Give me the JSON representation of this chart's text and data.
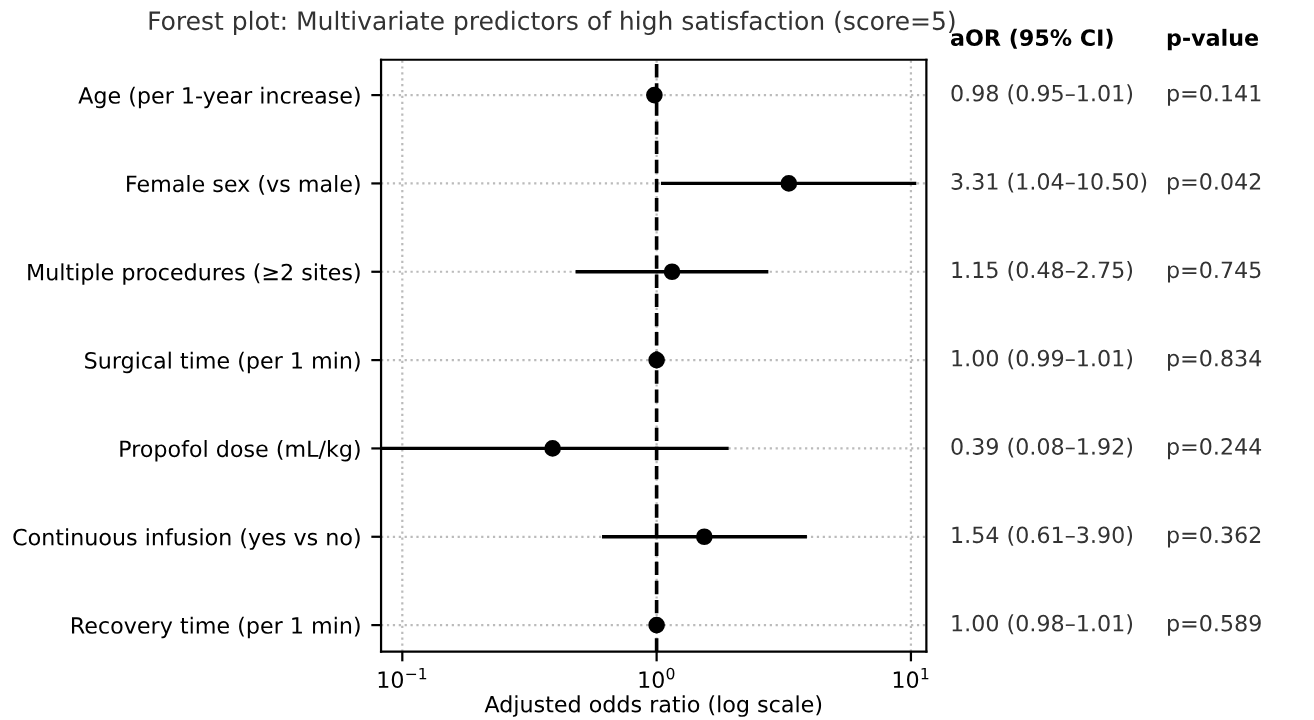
{
  "chart_data": {
    "type": "scatter",
    "orientation": "horizontal",
    "title": "Forest plot: Multivariate predictors of high satisfaction (score=5)",
    "xlabel": "Adjusted odds ratio (log scale)",
    "categories": [
      "Age (per 1-year increase)",
      "Female sex (vs male)",
      "Multiple procedures (≥2 sites)",
      "Surgical time (per 1 min)",
      "Propofol dose (mL/kg)",
      "Continuous infusion (yes vs no)",
      "Recovery time (per 1 min)"
    ],
    "values": [
      0.98,
      3.31,
      1.15,
      1.0,
      0.39,
      1.54,
      1.0
    ],
    "errors": [
      [
        0.95,
        1.01
      ],
      [
        1.04,
        10.5
      ],
      [
        0.48,
        2.75
      ],
      [
        0.99,
        1.01
      ],
      [
        0.08,
        1.92
      ],
      [
        0.61,
        3.9
      ],
      [
        0.98,
        1.01
      ]
    ],
    "color": "#000000",
    "marker": "circle",
    "log": "x",
    "xlim": [
      0.0825,
      11.5
    ],
    "xticks": [
      {
        "value": 0.1,
        "label": "10$^{−1}$"
      },
      {
        "value": 1,
        "label": "10$^{0}$"
      },
      {
        "value": 10,
        "label": "10$^{1}$"
      }
    ],
    "ref_lines": [
      {
        "axis": "x",
        "value": 1,
        "color": "#000000",
        "line_style": "dashed"
      }
    ],
    "grid": true,
    "annotations": [
      "aOR (95% CI)",
      "p-value",
      "0.98 (0.95–1.01)",
      "p=0.141",
      "3.31 (1.04–10.50)",
      "p=0.042",
      "1.15 (0.48–2.75)",
      "p=0.745",
      "1.00 (0.99–1.01)",
      "p=0.834",
      "0.39 (0.08–1.92)",
      "p=0.244",
      "1.54 (0.61–3.90)",
      "p=0.362",
      "1.00 (0.98–1.01)",
      "p=0.589"
    ]
  }
}
